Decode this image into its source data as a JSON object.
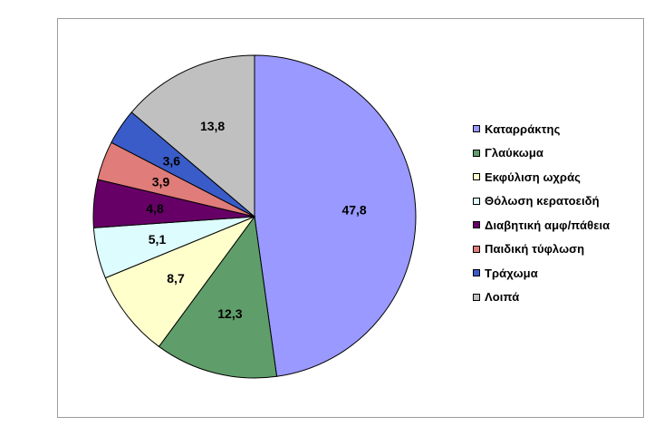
{
  "chart_data": {
    "type": "pie",
    "title": "",
    "legend_position": "right",
    "categories": [
      "Καταρράκτης",
      "Γλαύκωμα",
      "Εκφύλιση ωχράς",
      "Θόλωση κερατοειδή",
      "Διαβητική αμφ/πάθεια",
      "Παιδική τύφλωση",
      "Τράχωμα",
      "Λοιπά"
    ],
    "values": [
      47.8,
      12.3,
      8.7,
      5.1,
      4.8,
      3.9,
      3.6,
      13.8
    ],
    "value_labels": [
      "47,8",
      "12,3",
      "8,7",
      "5,1",
      "4,8",
      "3,9",
      "3,6",
      "13,8"
    ],
    "colors": [
      "#9999ff",
      "#5f9e6a",
      "#ffffcc",
      "#ddfcfd",
      "#660066",
      "#e07c79",
      "#3a5cc9",
      "#c0c0c0"
    ],
    "label_colors": [
      "#000000",
      "#000000",
      "#000000",
      "#000000",
      "#ffffff",
      "#000000",
      "#000000",
      "#000000"
    ]
  }
}
